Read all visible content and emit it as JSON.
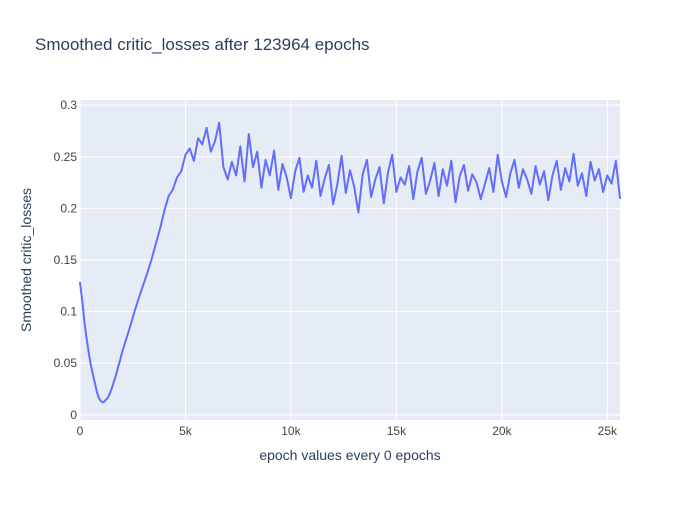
{
  "chart_data": {
    "type": "line",
    "title": "Smoothed critic_losses after 123964 epochs",
    "xlabel": "epoch values every 0 epochs",
    "ylabel": "Smoothed critic_losses",
    "xlim": [
      0,
      25600
    ],
    "ylim": [
      -0.005,
      0.305
    ],
    "x_ticks": [
      0,
      5000,
      10000,
      15000,
      20000,
      25000
    ],
    "x_tick_labels": [
      "0",
      "5k",
      "10k",
      "15k",
      "20k",
      "25k"
    ],
    "y_ticks": [
      0,
      0.05,
      0.1,
      0.15,
      0.2,
      0.25,
      0.3
    ],
    "y_tick_labels": [
      "0",
      "0.05",
      "0.1",
      "0.15",
      "0.2",
      "0.25",
      "0.3"
    ],
    "grid": true,
    "legend": false,
    "colors": {
      "line": "#636efa",
      "plot_bg": "#e5ecf6",
      "grid": "#ffffff",
      "text": "#2a3f5f",
      "axis_text": "#444444"
    },
    "series": [
      {
        "x": [
          0,
          100,
          200,
          300,
          400,
          500,
          600,
          700,
          800,
          900,
          1000,
          1100,
          1200,
          1300,
          1400,
          1500,
          1600,
          1700,
          1800,
          1900,
          2000,
          2200,
          2400,
          2600,
          2800,
          3000,
          3200,
          3400,
          3600,
          3800,
          4000,
          4200,
          4400,
          4600,
          4800,
          5000,
          5200,
          5400,
          5600,
          5800,
          6000,
          6200,
          6400,
          6600,
          6800,
          7000,
          7200,
          7400,
          7600,
          7800,
          8000,
          8200,
          8400,
          8600,
          8800,
          9000,
          9200,
          9400,
          9600,
          9800,
          10000,
          10200,
          10400,
          10600,
          10800,
          11000,
          11200,
          11400,
          11600,
          11800,
          12000,
          12200,
          12400,
          12600,
          12800,
          13000,
          13200,
          13400,
          13600,
          13800,
          14000,
          14200,
          14400,
          14600,
          14800,
          15000,
          15200,
          15400,
          15600,
          15800,
          16000,
          16200,
          16400,
          16600,
          16800,
          17000,
          17200,
          17400,
          17600,
          17800,
          18000,
          18200,
          18400,
          18600,
          18800,
          19000,
          19200,
          19400,
          19600,
          19800,
          20000,
          20200,
          20400,
          20600,
          20800,
          21000,
          21200,
          21400,
          21600,
          21800,
          22000,
          22200,
          22400,
          22600,
          22800,
          23000,
          23200,
          23400,
          23600,
          23800,
          24000,
          24200,
          24400,
          24600,
          24800,
          25000,
          25200,
          25400,
          25600
        ],
        "y": [
          0.128,
          0.112,
          0.092,
          0.076,
          0.062,
          0.05,
          0.04,
          0.031,
          0.022,
          0.016,
          0.013,
          0.012,
          0.014,
          0.016,
          0.02,
          0.025,
          0.032,
          0.038,
          0.046,
          0.053,
          0.061,
          0.074,
          0.087,
          0.101,
          0.114,
          0.126,
          0.138,
          0.151,
          0.166,
          0.181,
          0.198,
          0.212,
          0.218,
          0.23,
          0.236,
          0.252,
          0.258,
          0.246,
          0.268,
          0.262,
          0.278,
          0.255,
          0.265,
          0.283,
          0.24,
          0.228,
          0.245,
          0.232,
          0.26,
          0.226,
          0.272,
          0.24,
          0.255,
          0.22,
          0.247,
          0.232,
          0.256,
          0.218,
          0.243,
          0.23,
          0.21,
          0.236,
          0.249,
          0.216,
          0.232,
          0.22,
          0.246,
          0.212,
          0.229,
          0.242,
          0.204,
          0.223,
          0.251,
          0.215,
          0.237,
          0.221,
          0.196,
          0.233,
          0.247,
          0.211,
          0.228,
          0.24,
          0.205,
          0.235,
          0.252,
          0.216,
          0.23,
          0.223,
          0.241,
          0.209,
          0.236,
          0.249,
          0.214,
          0.227,
          0.244,
          0.212,
          0.238,
          0.222,
          0.246,
          0.206,
          0.231,
          0.242,
          0.217,
          0.233,
          0.225,
          0.209,
          0.224,
          0.239,
          0.216,
          0.252,
          0.226,
          0.211,
          0.234,
          0.247,
          0.22,
          0.238,
          0.228,
          0.214,
          0.241,
          0.223,
          0.236,
          0.208,
          0.232,
          0.246,
          0.218,
          0.239,
          0.226,
          0.253,
          0.222,
          0.234,
          0.212,
          0.245,
          0.227,
          0.238,
          0.216,
          0.232,
          0.224,
          0.246,
          0.21
        ]
      }
    ]
  }
}
